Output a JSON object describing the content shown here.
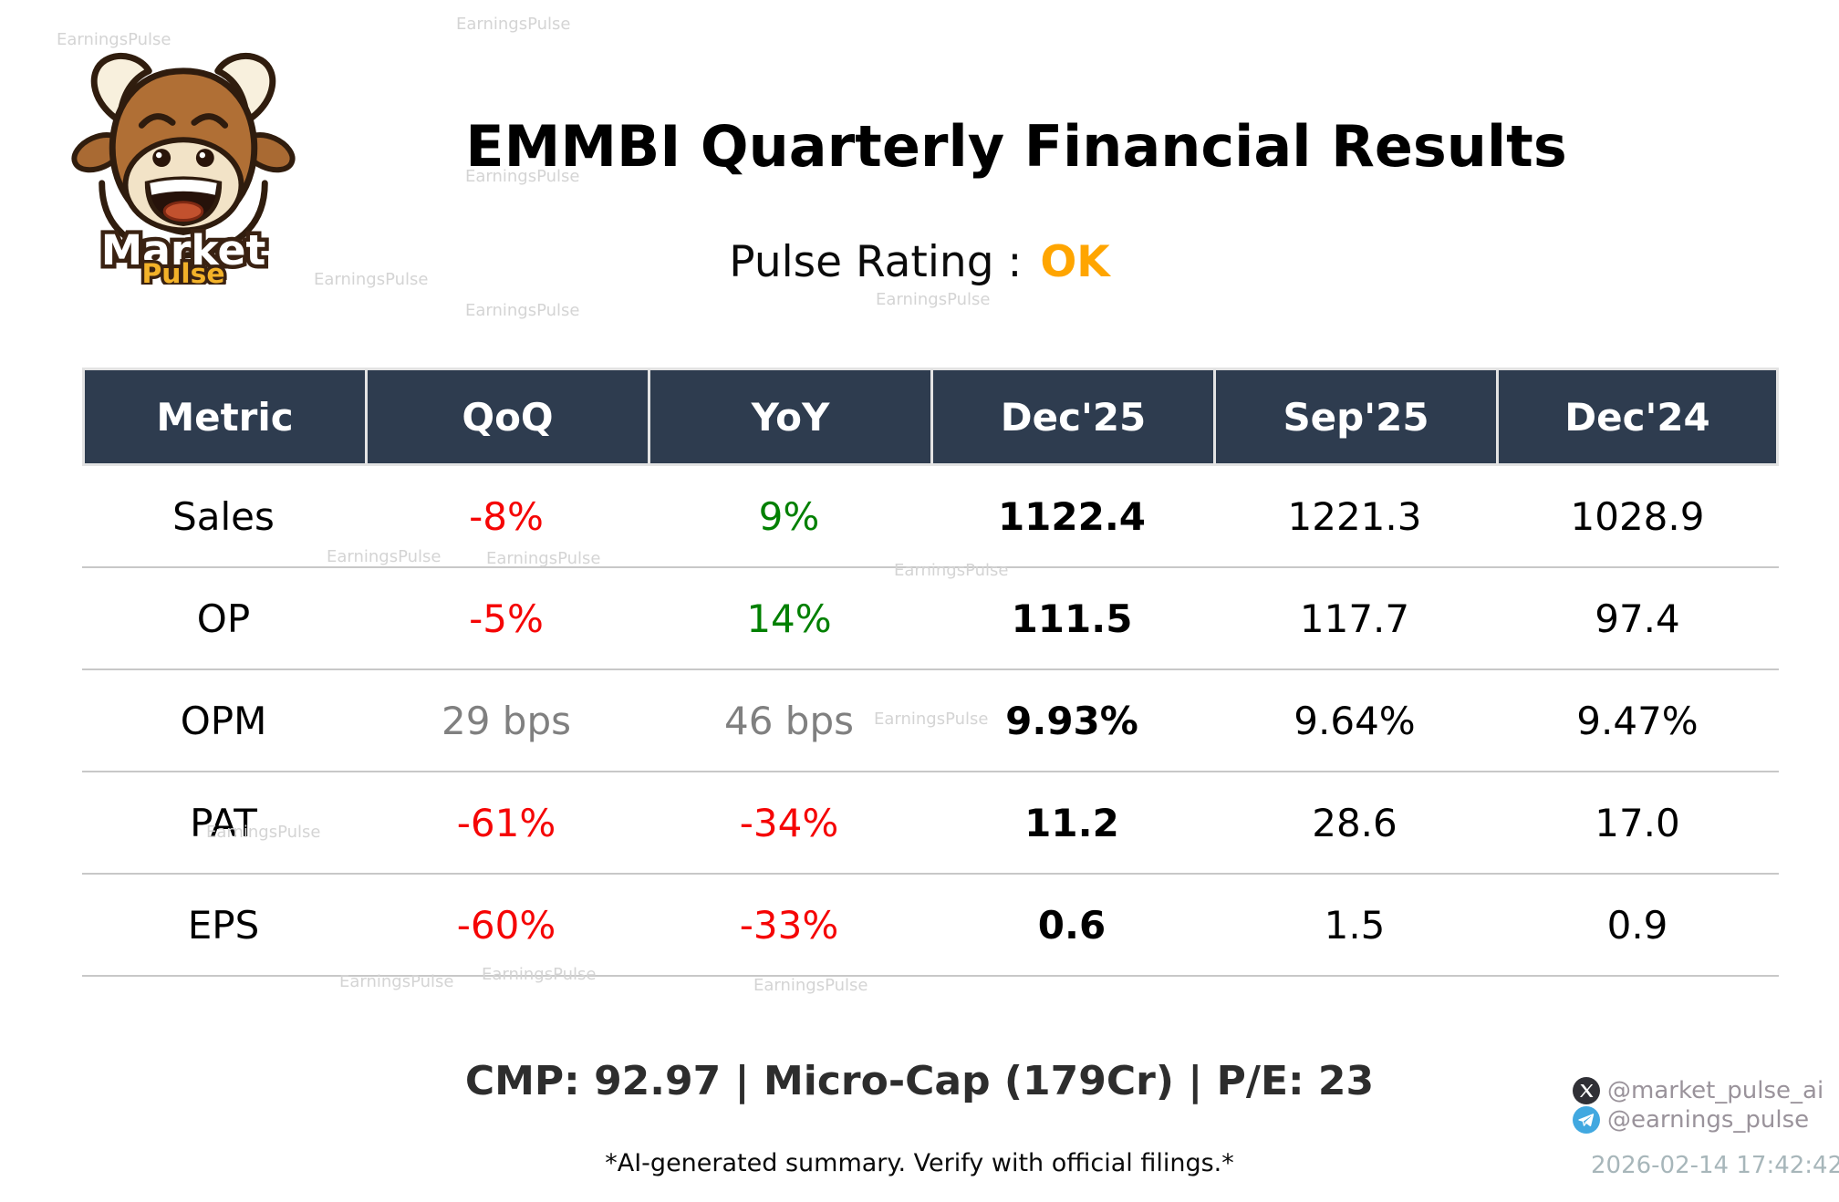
{
  "brand": {
    "logo_text_top": "Market",
    "logo_text_bottom": "Pulse",
    "watermark_text": "EarningsPulse"
  },
  "header": {
    "title": "EMMBI Quarterly Financial Results",
    "rating_label": "Pulse Rating :",
    "rating_value": "OK"
  },
  "table": {
    "columns": [
      "Metric",
      "QoQ",
      "YoY",
      "Dec'25",
      "Sep'25",
      "Dec'24"
    ],
    "rows": [
      {
        "metric": "Sales",
        "qoq": "-8%",
        "yoy": "9%",
        "dec25": "1122.4",
        "sep25": "1221.3",
        "dec24": "1028.9"
      },
      {
        "metric": "OP",
        "qoq": "-5%",
        "yoy": "14%",
        "dec25": "111.5",
        "sep25": "117.7",
        "dec24": "97.4"
      },
      {
        "metric": "OPM",
        "qoq": "29 bps",
        "yoy": "46 bps",
        "dec25": "9.93%",
        "sep25": "9.64%",
        "dec24": "9.47%"
      },
      {
        "metric": "PAT",
        "qoq": "-61%",
        "yoy": "-34%",
        "dec25": "11.2",
        "sep25": "28.6",
        "dec24": "17.0"
      },
      {
        "metric": "EPS",
        "qoq": "-60%",
        "yoy": "-33%",
        "dec25": "0.6",
        "sep25": "1.5",
        "dec24": "0.9"
      }
    ]
  },
  "footer": {
    "summary": "CMP: 92.97 | Micro-Cap (179Cr) | P/E: 23",
    "disclaimer": "*AI-generated summary. Verify with official filings.*"
  },
  "social": {
    "twitter_handle": "@market_pulse_ai",
    "telegram_handle": "@earnings_pulse",
    "timestamp": "2026-02-14 17:42:42"
  },
  "theme": {
    "header_bg": "#2e3c4f",
    "header_text": "#ffffff",
    "negative": "#f50505",
    "positive": "#008000",
    "neutral": "#808080",
    "accent": "#ffa500",
    "separator": "#c8c8c8",
    "watermark": "#d4d4d4",
    "handle": "#9a939b",
    "timestamp": "#a7b6ba",
    "summary": "#2d2d2d",
    "x_icon_bg": "#303036",
    "telegram_icon_bg": "#41a8e0"
  }
}
